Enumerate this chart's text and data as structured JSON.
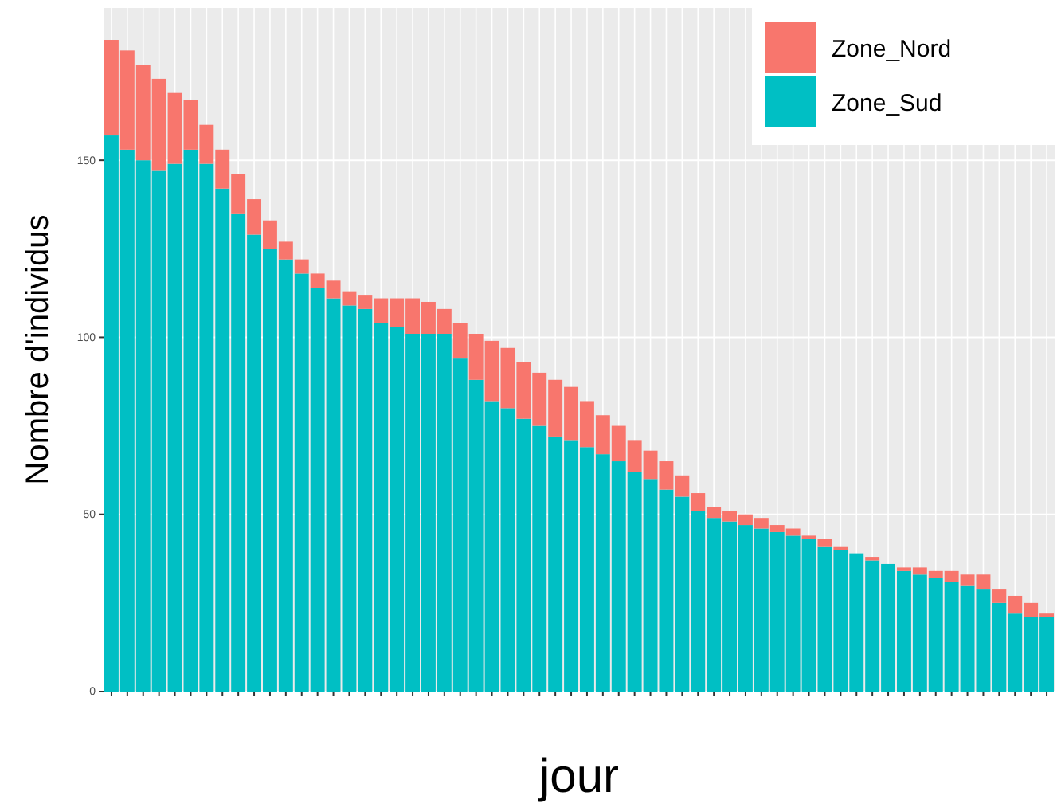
{
  "chart_data": {
    "type": "bar",
    "stacked": true,
    "xlabel": "jour",
    "ylabel": "Nombre d'individus",
    "categories": [
      null,
      null,
      null,
      null,
      null,
      null,
      null,
      null,
      null,
      null,
      null,
      null,
      null,
      null,
      null,
      null,
      null,
      null,
      null,
      null,
      null,
      null,
      null,
      null,
      null,
      null,
      null,
      null,
      null,
      null,
      null,
      null,
      null,
      null,
      null,
      null,
      null,
      null,
      null,
      null,
      null,
      null,
      null,
      null,
      null,
      null,
      null,
      null,
      null,
      null,
      null,
      null,
      null,
      null,
      null,
      null,
      null,
      null,
      null,
      null
    ],
    "series": [
      {
        "name": "Zone_Sud",
        "color": "#00bfc4",
        "values": [
          157,
          153,
          150,
          147,
          149,
          153,
          149,
          142,
          135,
          129,
          125,
          122,
          118,
          114,
          111,
          109,
          108,
          104,
          103,
          101,
          101,
          101,
          94,
          88,
          82,
          80,
          77,
          75,
          72,
          71,
          69,
          67,
          65,
          62,
          60,
          57,
          55,
          51,
          49,
          48,
          47,
          46,
          45,
          44,
          43,
          41,
          40,
          39,
          37,
          36,
          34,
          33,
          32,
          31,
          30,
          29,
          25,
          22,
          21,
          21
        ]
      },
      {
        "name": "Zone_Nord",
        "color": "#f8766d",
        "values": [
          27,
          28,
          27,
          26,
          20,
          14,
          11,
          11,
          11,
          10,
          8,
          5,
          4,
          4,
          5,
          4,
          4,
          7,
          8,
          10,
          9,
          7,
          10,
          13,
          17,
          17,
          16,
          15,
          16,
          15,
          13,
          11,
          10,
          9,
          8,
          8,
          6,
          5,
          3,
          3,
          3,
          3,
          2,
          2,
          1,
          2,
          1,
          0,
          1,
          0,
          1,
          2,
          2,
          3,
          3,
          4,
          4,
          5,
          4,
          1
        ]
      }
    ],
    "ylim": [
      0,
      193
    ],
    "yticks": [
      0,
      50,
      100,
      150
    ],
    "grid": true,
    "legend": "top right"
  }
}
